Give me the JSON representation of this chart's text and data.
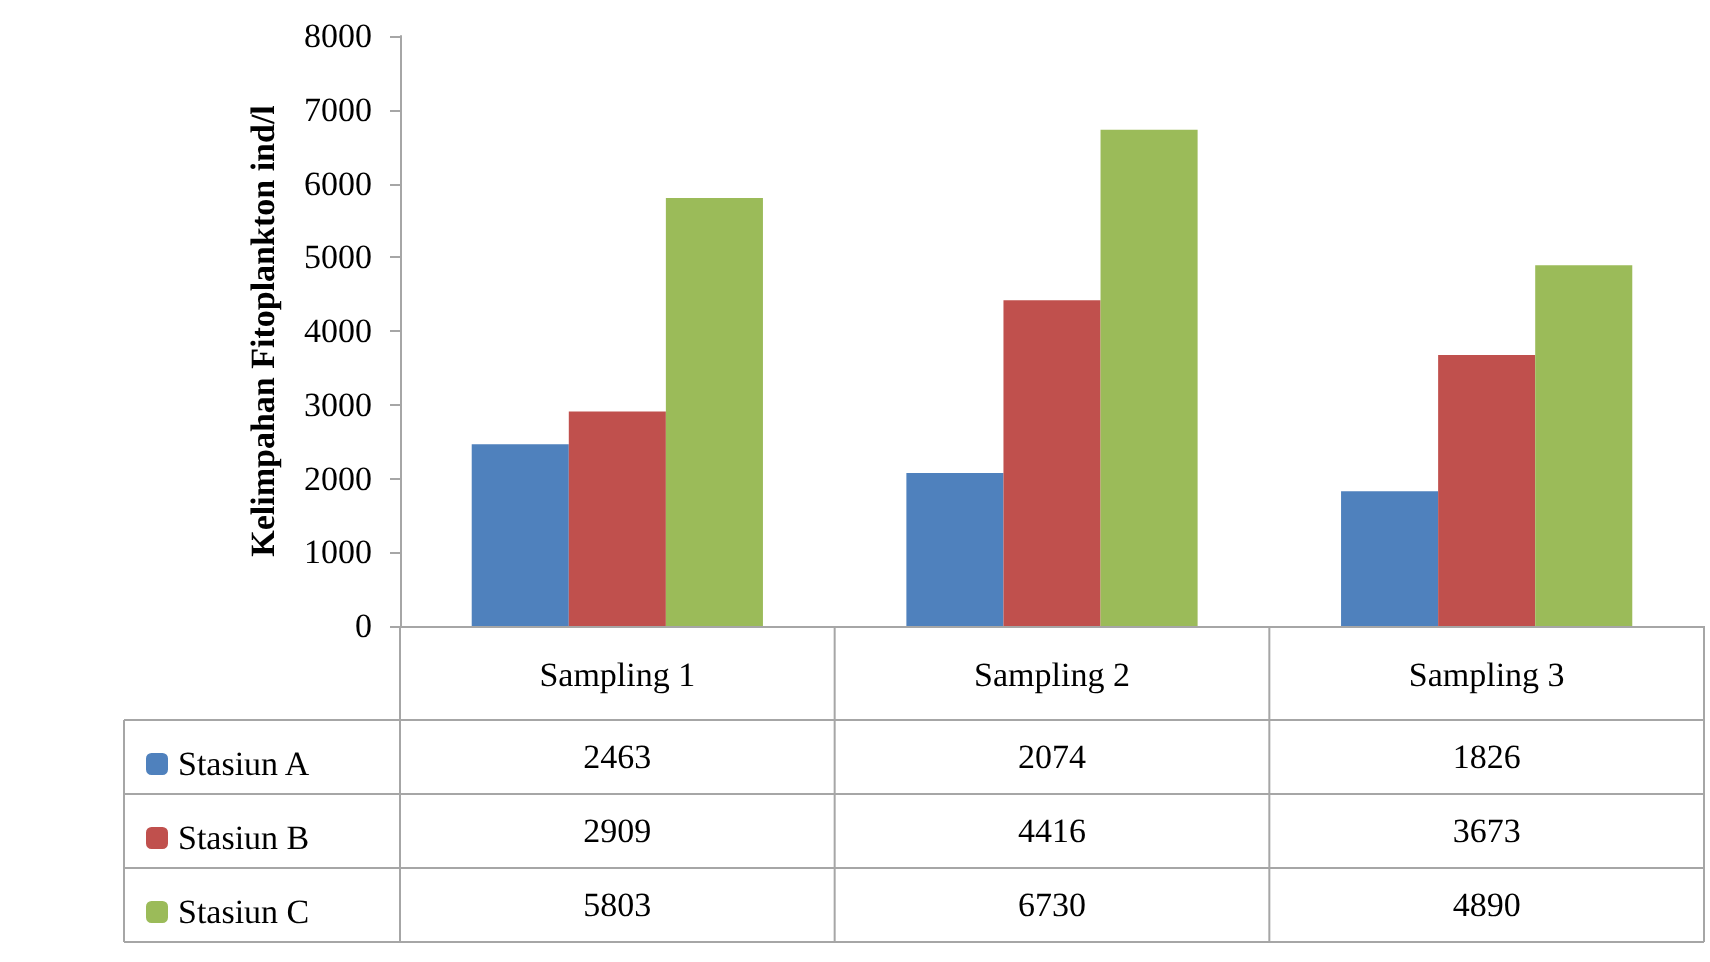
{
  "chart_data": {
    "type": "bar",
    "ylabel": "Kelimpahan Fitoplankton ind/l",
    "categories": [
      "Sampling 1",
      "Sampling 2",
      "Sampling 3"
    ],
    "series": [
      {
        "name": "Stasiun A",
        "color": "#4f81bd",
        "values": [
          2463,
          2074,
          1826
        ]
      },
      {
        "name": "Stasiun B",
        "color": "#c0504d",
        "values": [
          2909,
          4416,
          3673
        ]
      },
      {
        "name": "Stasiun C",
        "color": "#9bbb59",
        "values": [
          5803,
          6730,
          4890
        ]
      }
    ],
    "ylim": [
      0,
      8000
    ],
    "yticks": [
      0,
      1000,
      2000,
      3000,
      4000,
      5000,
      6000,
      7000,
      8000
    ],
    "grid": false,
    "legend": "bottom left",
    "data_labels": true
  }
}
